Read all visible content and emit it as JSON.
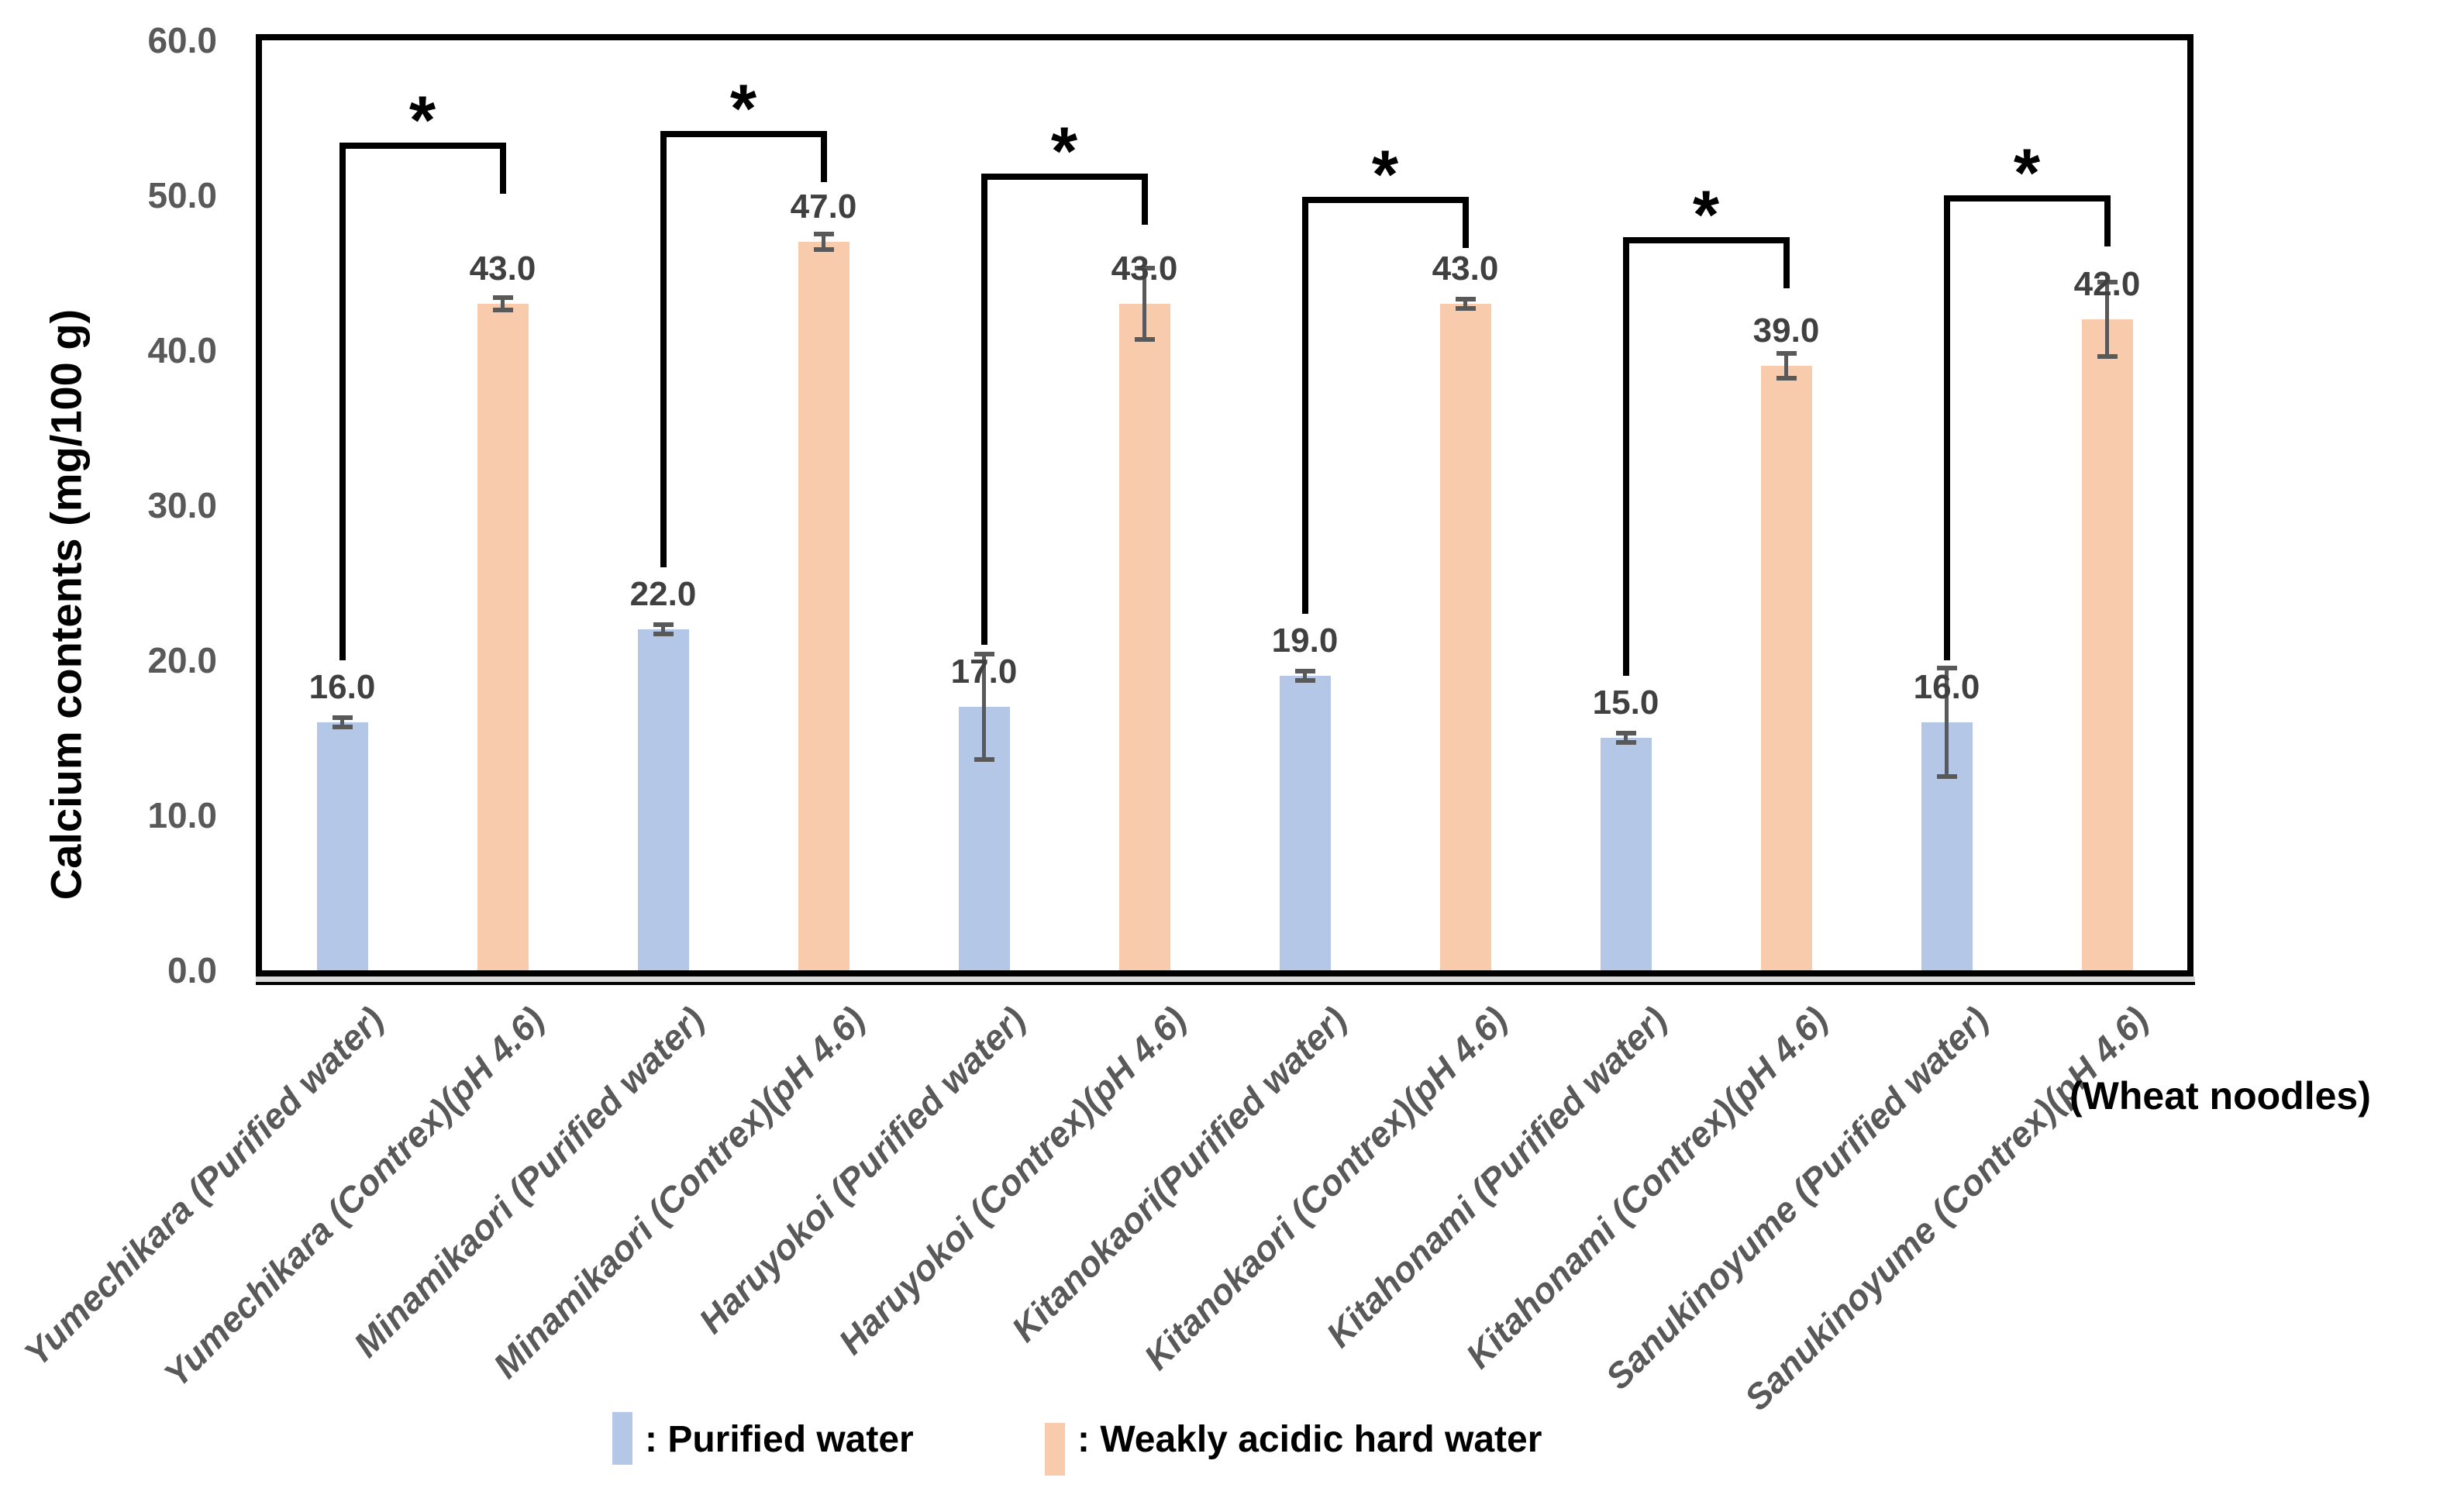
{
  "chart_data": {
    "type": "bar",
    "title": "",
    "ylabel": "Calcium contents (mg/100 g)",
    "xaxis_note": "(Wheat noodles)",
    "ylim": [
      0,
      60
    ],
    "ytick_values": [
      0,
      10,
      20,
      30,
      40,
      50,
      60
    ],
    "ytick_labels": [
      "0.0",
      "10.0",
      "20.0",
      "30.0",
      "40.0",
      "50.0",
      "60.0"
    ],
    "grid": false,
    "categories": [
      "Yumechikara (Purified water)",
      "Yumechikara (Contrex)(pH 4.6)",
      "Minamikaori (Purified water)",
      "Minamikaori (Contrex)(pH 4.6)",
      "Haruyokoi (Purified water)",
      "Haruyokoi (Contrex)(pH 4.6)",
      "Kitanokaori(Purified water)",
      "Kitanokaori (Contrex)(pH 4.6)",
      "Kitahonami (Purified water)",
      "Kitahonami (Contrex)(pH 4.6)",
      "Sanukinoyume (Purified water)",
      "Sanukinoyume (Contrex)(pH 4.6)"
    ],
    "series": [
      {
        "name": "Purified water",
        "color": "#B4C7E7",
        "values": [
          16.0,
          22.0,
          17.0,
          19.0,
          15.0,
          16.0
        ],
        "data_labels": [
          "16.0",
          "22.0",
          "17.0",
          "19.0",
          "15.0",
          "16.0"
        ],
        "errors": [
          0.3,
          0.3,
          3.4,
          0.3,
          0.3,
          3.5
        ]
      },
      {
        "name": "Weakly acidic hard water",
        "color": "#F8CBAD",
        "values": [
          43.0,
          47.0,
          43.0,
          43.0,
          39.0,
          42.0
        ],
        "data_labels": [
          "43.0",
          "47.0",
          "43.0",
          "43.0",
          "39.0",
          "42.0"
        ],
        "errors": [
          0.4,
          0.5,
          2.3,
          0.3,
          0.8,
          2.4
        ]
      }
    ],
    "significance": {
      "marker": "*",
      "pairs": [
        {
          "left": "Yumechikara (Purified water)",
          "right": "Yumechikara (Contrex)(pH 4.6)",
          "label": "*"
        },
        {
          "left": "Minamikaori (Purified water)",
          "right": "Minamikaori (Contrex)(pH 4.6)",
          "label": "*"
        },
        {
          "left": "Haruyokoi (Purified water)",
          "right": "Haruyokoi (Contrex)(pH 4.6)",
          "label": "*"
        },
        {
          "left": "Kitanokaori(Purified water)",
          "right": "Kitanokaori (Contrex)(pH 4.6)",
          "label": "*"
        },
        {
          "left": "Kitahonami (Purified water)",
          "right": "Kitahonami (Contrex)(pH 4.6)",
          "label": "*"
        },
        {
          "left": "Sanukinoyume (Purified water)",
          "right": "Sanukinoyume (Contrex)(pH 4.6)",
          "label": "*"
        }
      ]
    },
    "legend": [
      {
        "label": ": Purified water",
        "color": "#B4C7E7"
      },
      {
        "label": ": Weakly acidic hard water",
        "color": "#F8CBAD"
      }
    ],
    "legend_position": "bottom",
    "colors": {
      "bar_blue": "#B4C7E7",
      "bar_orange": "#F8CBAD",
      "error_bar": "#595959",
      "tick_text": "#595959",
      "data_label_text": "#404040",
      "category_text": "#595959",
      "axis_line": "#000000",
      "axis_shadow": "#D9D9D9"
    }
  }
}
